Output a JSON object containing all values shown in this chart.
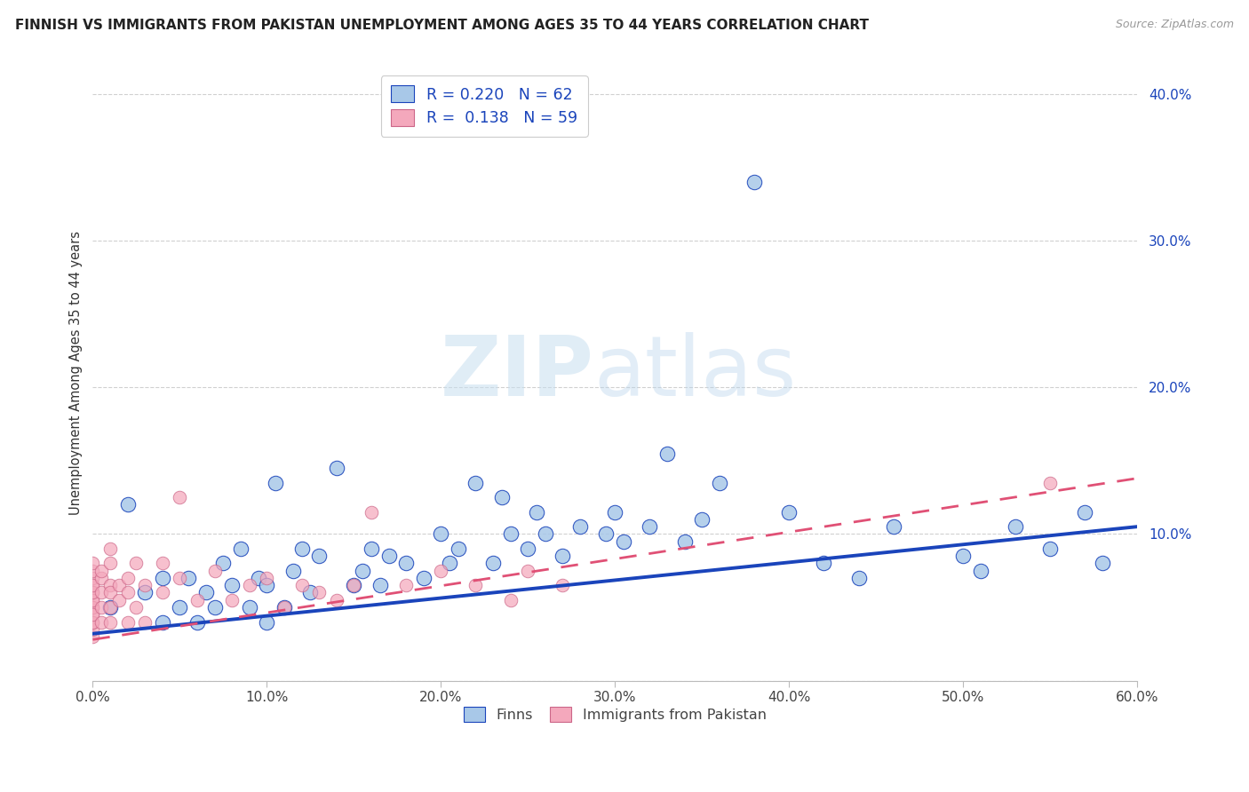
{
  "title": "FINNISH VS IMMIGRANTS FROM PAKISTAN UNEMPLOYMENT AMONG AGES 35 TO 44 YEARS CORRELATION CHART",
  "source": "Source: ZipAtlas.com",
  "ylabel": "Unemployment Among Ages 35 to 44 years",
  "r_finns": 0.22,
  "n_finns": 62,
  "r_pakistan": 0.138,
  "n_pakistan": 59,
  "xlim": [
    0.0,
    0.6
  ],
  "ylim": [
    0.0,
    0.42
  ],
  "xticks": [
    0.0,
    0.1,
    0.2,
    0.3,
    0.4,
    0.5,
    0.6
  ],
  "yticks": [
    0.0,
    0.1,
    0.2,
    0.3,
    0.4
  ],
  "color_finns": "#a8c8e8",
  "color_pakistan": "#f4a8bc",
  "color_finns_line": "#1a44bb",
  "color_pakistan_line": "#e05075",
  "legend_finns": "Finns",
  "legend_pakistan": "Immigrants from Pakistan",
  "finns_line_start_y": 0.032,
  "finns_line_end_y": 0.105,
  "pakistan_line_start_y": 0.028,
  "pakistan_line_end_y": 0.138,
  "finns_x": [
    0.01,
    0.02,
    0.03,
    0.04,
    0.04,
    0.05,
    0.055,
    0.06,
    0.065,
    0.07,
    0.075,
    0.08,
    0.085,
    0.09,
    0.095,
    0.1,
    0.1,
    0.105,
    0.11,
    0.115,
    0.12,
    0.125,
    0.13,
    0.14,
    0.15,
    0.155,
    0.16,
    0.165,
    0.17,
    0.18,
    0.19,
    0.2,
    0.205,
    0.21,
    0.22,
    0.23,
    0.235,
    0.24,
    0.25,
    0.255,
    0.26,
    0.27,
    0.28,
    0.295,
    0.3,
    0.305,
    0.32,
    0.33,
    0.34,
    0.35,
    0.36,
    0.38,
    0.4,
    0.42,
    0.44,
    0.46,
    0.5,
    0.51,
    0.53,
    0.55,
    0.57,
    0.58
  ],
  "finns_y": [
    0.05,
    0.12,
    0.06,
    0.04,
    0.07,
    0.05,
    0.07,
    0.04,
    0.06,
    0.05,
    0.08,
    0.065,
    0.09,
    0.05,
    0.07,
    0.04,
    0.065,
    0.135,
    0.05,
    0.075,
    0.09,
    0.06,
    0.085,
    0.145,
    0.065,
    0.075,
    0.09,
    0.065,
    0.085,
    0.08,
    0.07,
    0.1,
    0.08,
    0.09,
    0.135,
    0.08,
    0.125,
    0.1,
    0.09,
    0.115,
    0.1,
    0.085,
    0.105,
    0.1,
    0.115,
    0.095,
    0.105,
    0.155,
    0.095,
    0.11,
    0.135,
    0.34,
    0.115,
    0.08,
    0.07,
    0.105,
    0.085,
    0.075,
    0.105,
    0.09,
    0.115,
    0.08
  ],
  "pakistan_x": [
    0.0,
    0.0,
    0.0,
    0.0,
    0.0,
    0.0,
    0.0,
    0.0,
    0.0,
    0.0,
    0.0,
    0.0,
    0.0,
    0.0,
    0.0,
    0.0,
    0.0,
    0.005,
    0.005,
    0.005,
    0.005,
    0.005,
    0.01,
    0.01,
    0.01,
    0.01,
    0.01,
    0.01,
    0.015,
    0.015,
    0.02,
    0.02,
    0.02,
    0.025,
    0.025,
    0.03,
    0.03,
    0.04,
    0.04,
    0.05,
    0.05,
    0.06,
    0.07,
    0.08,
    0.09,
    0.1,
    0.11,
    0.12,
    0.13,
    0.14,
    0.15,
    0.16,
    0.18,
    0.2,
    0.22,
    0.24,
    0.25,
    0.27,
    0.55
  ],
  "pakistan_y": [
    0.03,
    0.035,
    0.04,
    0.045,
    0.05,
    0.055,
    0.06,
    0.065,
    0.07,
    0.075,
    0.08,
    0.04,
    0.05,
    0.055,
    0.06,
    0.045,
    0.065,
    0.05,
    0.06,
    0.07,
    0.075,
    0.04,
    0.05,
    0.065,
    0.04,
    0.06,
    0.08,
    0.09,
    0.055,
    0.065,
    0.06,
    0.07,
    0.04,
    0.08,
    0.05,
    0.065,
    0.04,
    0.08,
    0.06,
    0.07,
    0.125,
    0.055,
    0.075,
    0.055,
    0.065,
    0.07,
    0.05,
    0.065,
    0.06,
    0.055,
    0.065,
    0.115,
    0.065,
    0.075,
    0.065,
    0.055,
    0.075,
    0.065,
    0.135
  ]
}
